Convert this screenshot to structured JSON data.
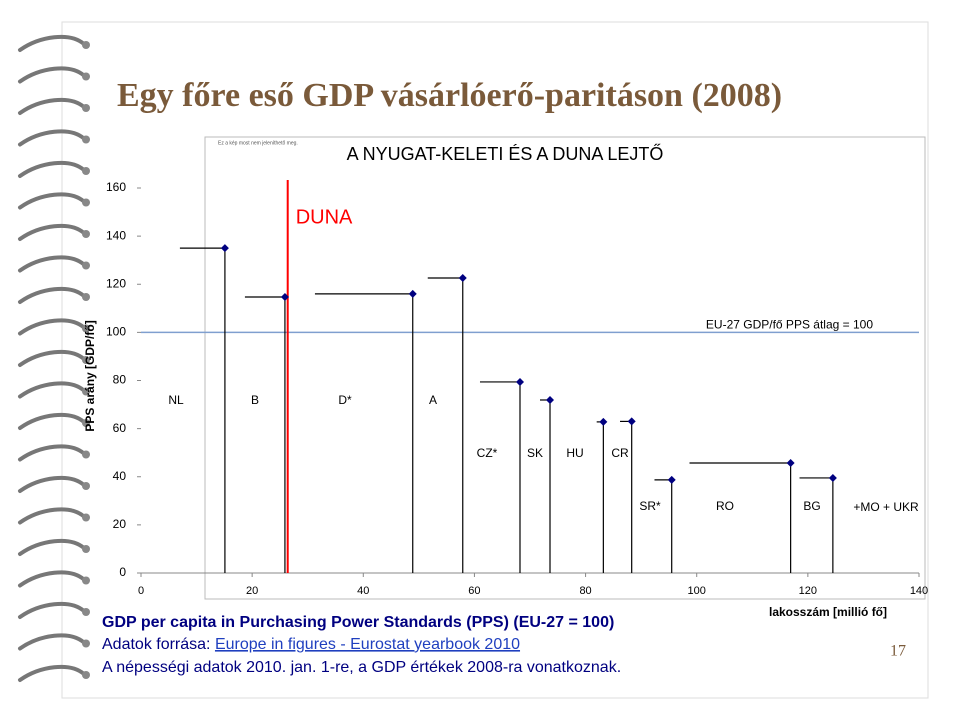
{
  "slide": {
    "title": "Egy főre eső GDP vásárlóerő-paritáson (2008)",
    "image_note": "Ez a kép most nem jeleníthető meg.",
    "page_number": "17",
    "footer": {
      "line1": "GDP per capita in Purchasing Power Standards (PPS) (EU-27 = 100)",
      "source_prefix": "Adatok forrása: ",
      "source_link": "Europe in figures - Eurostat yearbook 2010",
      "line3": "A népességi adatok 2010. jan. 1-re, a GDP értékek 2008-ra vonatkoznak."
    }
  },
  "chart_data": {
    "type": "step-segments",
    "title": "A NYUGAT-KELETI ÉS A DUNA LEJTŐ",
    "xlabel": "lakosszám [millió fő]",
    "ylabel": "PPS arány [GDP/fő]",
    "xlim": [
      0,
      140
    ],
    "ylim": [
      0,
      160
    ],
    "xticks": [
      0,
      20,
      40,
      60,
      80,
      100,
      120,
      140
    ],
    "yticks": [
      0,
      20,
      40,
      60,
      80,
      100,
      120,
      140,
      160
    ],
    "color": "#000080",
    "marker_color": "#000080",
    "series": [
      {
        "name": "NL",
        "x": [
          7,
          15.1
        ],
        "value": 135
      },
      {
        "name": "B",
        "x": [
          18.7,
          25.9
        ],
        "value": 114.7
      },
      {
        "name": "D*",
        "x": [
          31.3,
          48.9
        ],
        "value": 116
      },
      {
        "name": "A",
        "x": [
          51.6,
          57.9
        ],
        "value": 122.6
      },
      {
        "name": "CZ*",
        "x": [
          61,
          68.2
        ],
        "value": 79.4
      },
      {
        "name": "SK",
        "x": [
          71.8,
          73.6
        ],
        "value": 71.9
      },
      {
        "name": "HU",
        "x": [
          82,
          83.2
        ],
        "value": 62.8
      },
      {
        "name": "CR",
        "x": [
          86.2,
          88.3
        ],
        "value": 63
      },
      {
        "name": "SR*",
        "x": [
          92.4,
          95.5
        ],
        "value": 38.7
      },
      {
        "name": "RO",
        "x": [
          98.7,
          116.9
        ],
        "value": 45.7
      },
      {
        "name": "BG",
        "x": [
          118.5,
          124.5
        ],
        "value": 39.5
      }
    ],
    "reference": {
      "value": 100,
      "label": "EU-27 GDP/fő PPS átlag = 100",
      "color": "#7f9fcf"
    },
    "duna": {
      "x": 26.4,
      "label": "DUNA",
      "color": "#ff0000"
    },
    "extra_label": "+MO + UKR"
  }
}
